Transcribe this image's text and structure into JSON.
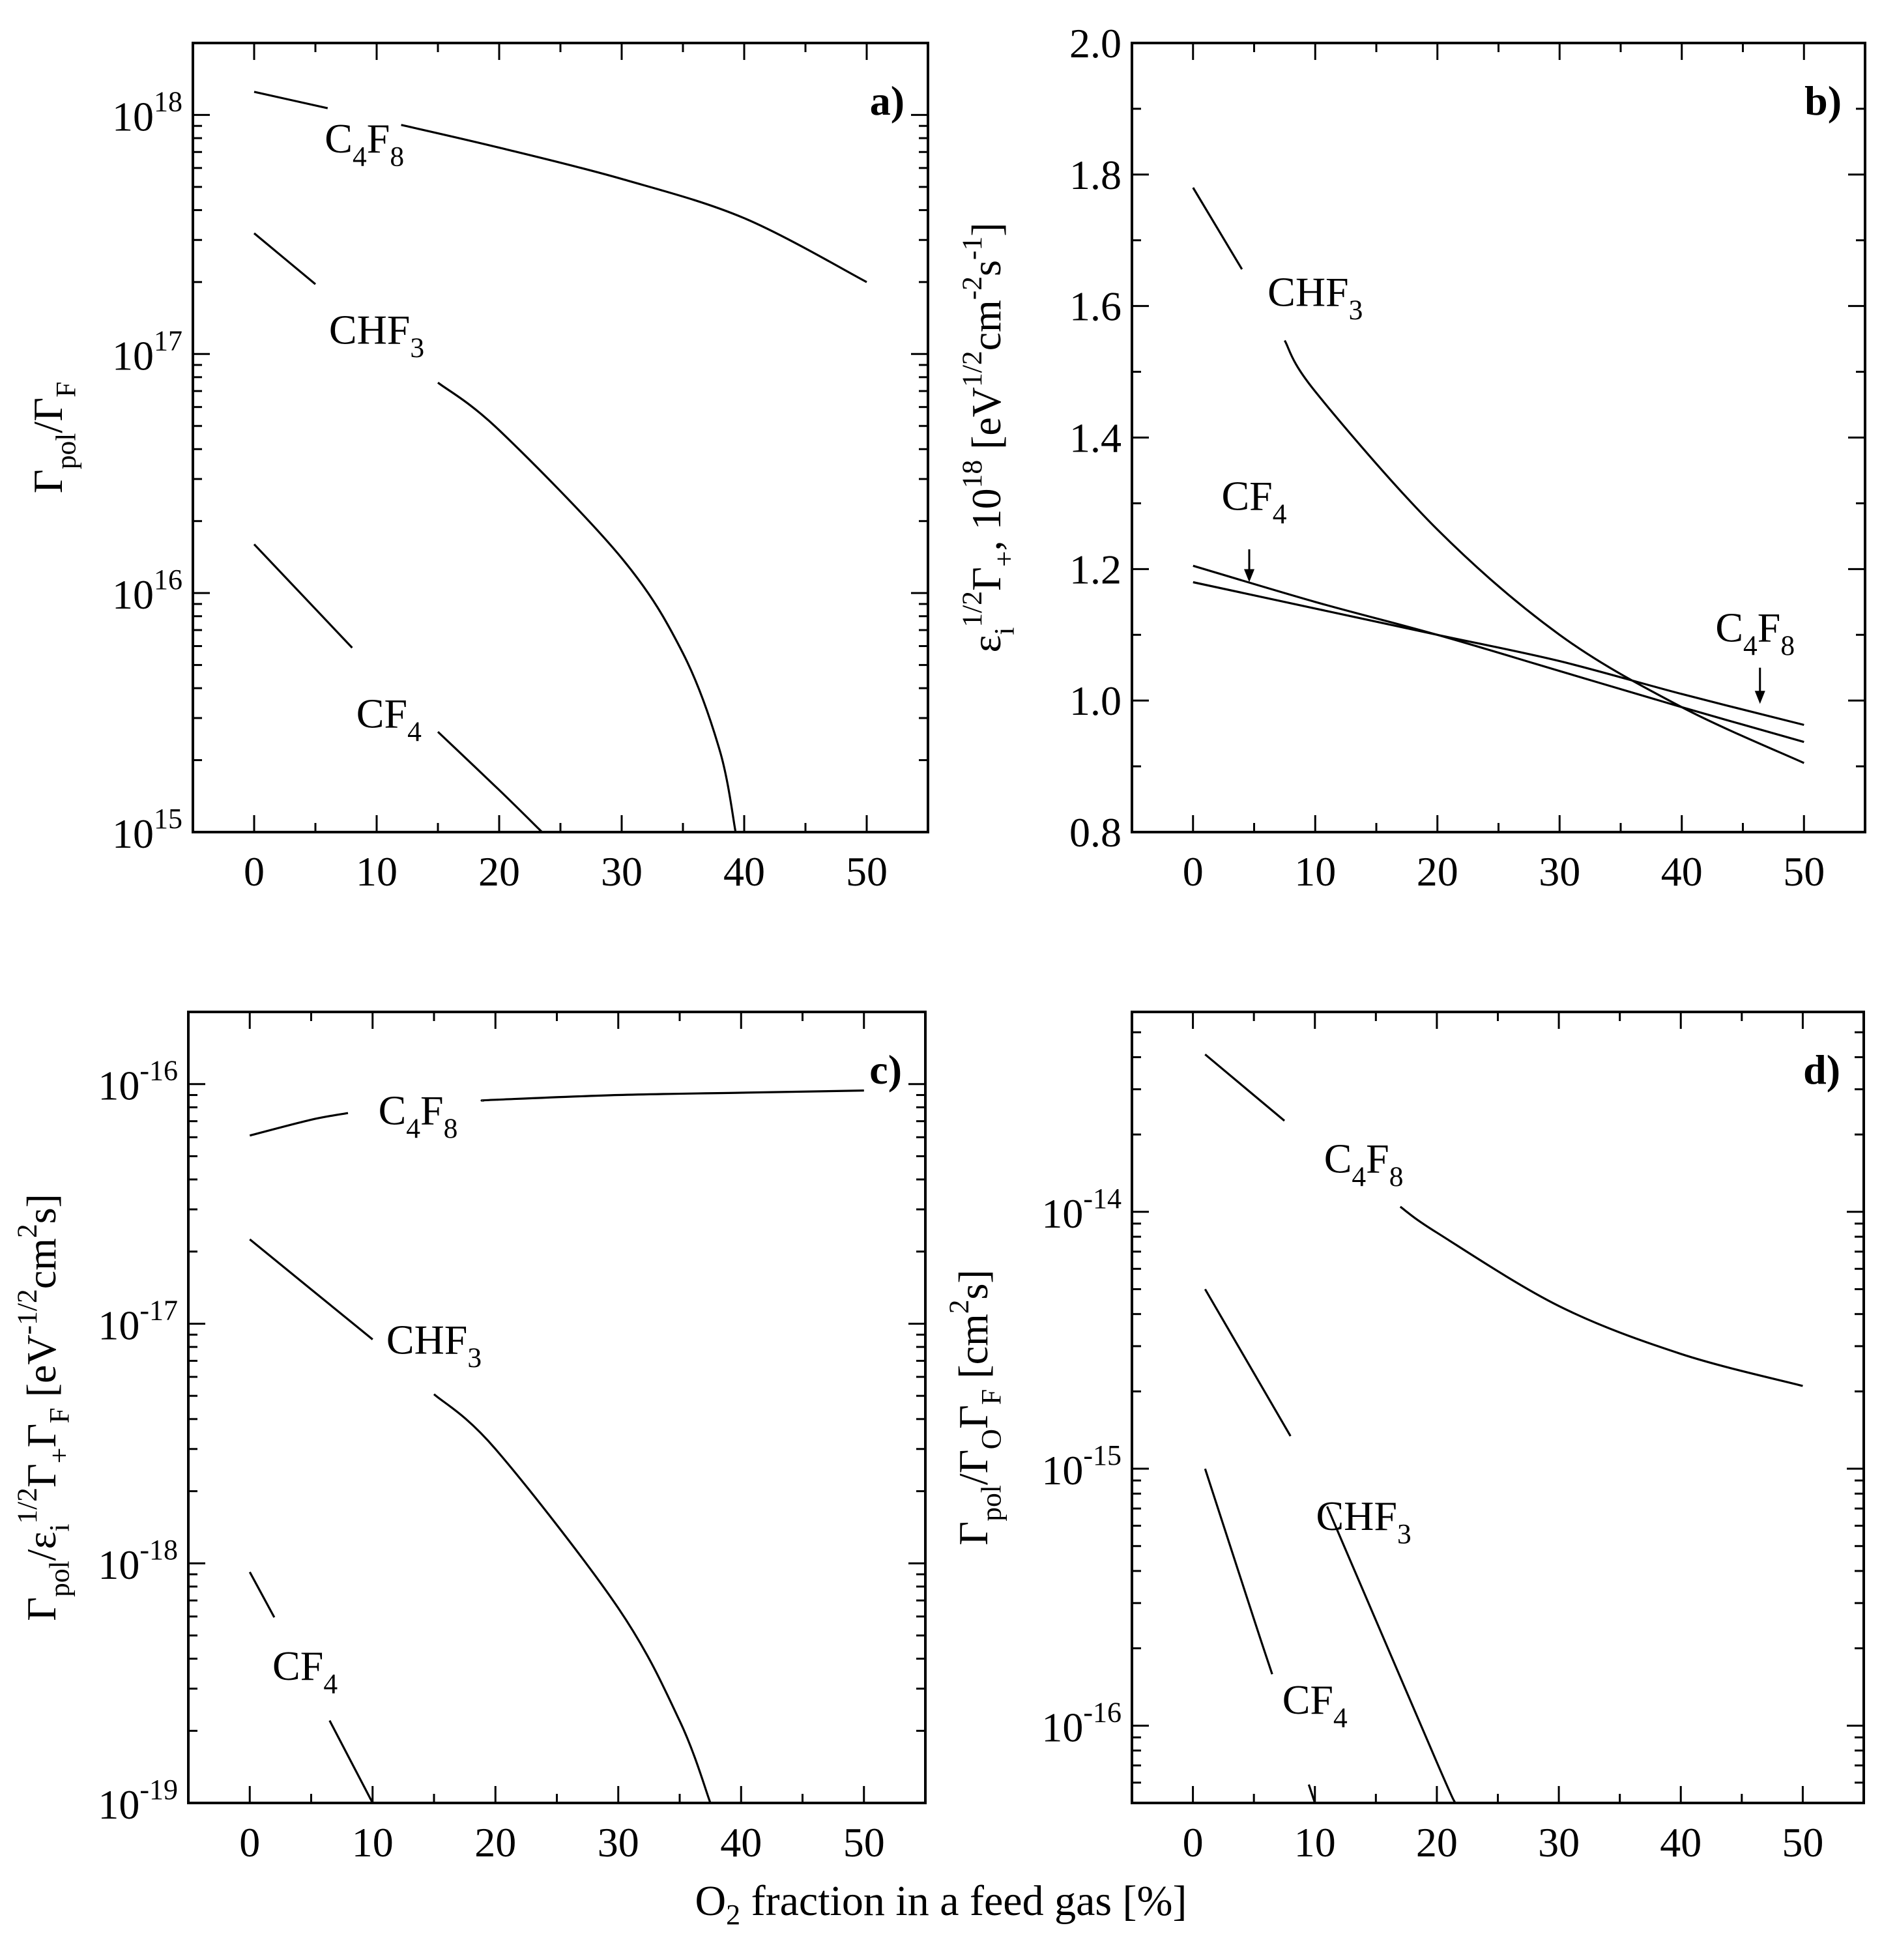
{
  "figure": {
    "shared_xlabel": {
      "pre": "O",
      "sub": "2",
      "post": " fraction in a feed gas [%]"
    }
  },
  "chart_data": [
    {
      "id": "a",
      "type": "line",
      "panel_label": "a)",
      "ylabel": [
        {
          "t": "Γ"
        },
        {
          "t": "pol",
          "s": "sub"
        },
        {
          "t": "/Γ"
        },
        {
          "t": "F",
          "s": "sub"
        }
      ],
      "xlim": [
        -5,
        55
      ],
      "yscale": "log",
      "ylim": [
        1000000000000000.0,
        2e+18
      ],
      "xticks": [
        0,
        10,
        20,
        30,
        40,
        50
      ],
      "yticks": [
        1000000000000000.0,
        1e+16,
        1e+17,
        1e+18
      ],
      "ytick_labels": [
        {
          "base": "10",
          "exp": "15"
        },
        {
          "base": "10",
          "exp": "16"
        },
        {
          "base": "10",
          "exp": "17"
        },
        {
          "base": "10",
          "exp": "18"
        }
      ],
      "series": [
        {
          "name": "C4F8",
          "label": [
            {
              "t": "C"
            },
            {
              "t": "4",
              "s": "sub"
            },
            {
              "t": "F"
            },
            {
              "t": "8",
              "s": "sub"
            }
          ],
          "x": [
            0,
            10,
            20,
            30,
            40,
            50
          ],
          "y": [
            1.25e+18,
            9.6e+17,
            7.3e+17,
            5.4e+17,
            3.7e+17,
            2e+17
          ],
          "label_at": [
            9,
            7.9e+17
          ],
          "gap": [
            6,
            12
          ]
        },
        {
          "name": "CHF3",
          "label": [
            {
              "t": "CHF"
            },
            {
              "t": "3",
              "s": "sub"
            }
          ],
          "x": [
            0,
            10,
            20,
            30,
            35,
            38,
            39.3
          ],
          "y": [
            3.2e+17,
            1.2e+17,
            4.8e+16,
            1.4e+16,
            5600000000000000.0,
            2200000000000000.0,
            1000000000000000.0
          ],
          "label_at": [
            10,
            1.25e+17
          ],
          "gap": [
            5,
            15
          ]
        },
        {
          "name": "CF4",
          "label": [
            {
              "t": "CF"
            },
            {
              "t": "4",
              "s": "sub"
            }
          ],
          "x": [
            0,
            10,
            20,
            23.5
          ],
          "y": [
            1.6e+16,
            4600000000000000.0,
            1500000000000000.0,
            1000000000000000.0
          ],
          "label_at": [
            11,
            3100000000000000.0
          ],
          "gap": [
            8,
            15
          ]
        }
      ]
    },
    {
      "id": "b",
      "type": "line",
      "panel_label": "b)",
      "ylabel": [
        {
          "t": "ε"
        },
        {
          "t": "i",
          "s": "sub"
        },
        {
          "t": "1/2",
          "s": "sup"
        },
        {
          "t": "Γ"
        },
        {
          "t": "+",
          "s": "sub"
        },
        {
          "t": ", 10"
        },
        {
          "t": "18",
          "s": "sup"
        },
        {
          "t": " [eV"
        },
        {
          "t": "1/2",
          "s": "sup"
        },
        {
          "t": "cm"
        },
        {
          "t": "-2",
          "s": "sup"
        },
        {
          "t": "s"
        },
        {
          "t": "-1",
          "s": "sup"
        },
        {
          "t": "]"
        }
      ],
      "xlim": [
        -5,
        55
      ],
      "yscale": "linear",
      "ylim": [
        0.8,
        2.0
      ],
      "xticks": [
        0,
        10,
        20,
        30,
        40,
        50
      ],
      "yticks": [
        0.8,
        1.0,
        1.2,
        1.4,
        1.6,
        1.8,
        2.0
      ],
      "ytick_labels": [
        {
          "base": "0.8"
        },
        {
          "base": "1.0"
        },
        {
          "base": "1.2"
        },
        {
          "base": "1.4"
        },
        {
          "base": "1.6"
        },
        {
          "base": "1.8"
        },
        {
          "base": "2.0"
        }
      ],
      "series": [
        {
          "name": "CHF3",
          "label": [
            {
              "t": "CHF"
            },
            {
              "t": "3",
              "s": "sub"
            }
          ],
          "x": [
            0,
            10,
            20,
            30,
            40,
            50
          ],
          "y": [
            1.78,
            1.47,
            1.26,
            1.1,
            0.99,
            0.905
          ],
          "label_at": [
            10,
            1.62
          ],
          "gap": [
            4,
            7.5
          ]
        },
        {
          "name": "CF4",
          "x": [
            0,
            10,
            20,
            30,
            40,
            50
          ],
          "y": [
            1.205,
            1.15,
            1.1,
            1.045,
            0.99,
            0.937
          ]
        },
        {
          "name": "C4F8",
          "x": [
            0,
            10,
            20,
            30,
            40,
            50
          ],
          "y": [
            1.18,
            1.14,
            1.1,
            1.06,
            1.01,
            0.963
          ]
        }
      ],
      "annotations": [
        {
          "label": [
            {
              "t": "CF"
            },
            {
              "t": "4",
              "s": "sub"
            }
          ],
          "text_at": [
            5,
            1.29
          ],
          "arrow_from": [
            4.6,
            1.23
          ],
          "arrow_to": [
            4.6,
            1.18
          ]
        },
        {
          "label": [
            {
              "t": "C"
            },
            {
              "t": "4",
              "s": "sub"
            },
            {
              "t": "F"
            },
            {
              "t": "8",
              "s": "sub"
            }
          ],
          "text_at": [
            46,
            1.09
          ],
          "arrow_from": [
            46.4,
            1.05
          ],
          "arrow_to": [
            46.4,
            0.995
          ]
        }
      ]
    },
    {
      "id": "c",
      "type": "line",
      "panel_label": "c)",
      "ylabel": [
        {
          "t": "Γ"
        },
        {
          "t": "pol",
          "s": "sub"
        },
        {
          "t": "/ε"
        },
        {
          "t": "i",
          "s": "sub"
        },
        {
          "t": "1/2",
          "s": "sup"
        },
        {
          "t": "Γ"
        },
        {
          "t": "+",
          "s": "sub"
        },
        {
          "t": "Γ"
        },
        {
          "t": "F",
          "s": "sub"
        },
        {
          "t": " [eV"
        },
        {
          "t": "-1/2",
          "s": "sup"
        },
        {
          "t": "cm"
        },
        {
          "t": "2",
          "s": "sup"
        },
        {
          "t": "s]"
        }
      ],
      "xlim": [
        -5,
        55
      ],
      "yscale": "log",
      "ylim": [
        1e-19,
        2e-16
      ],
      "xticks": [
        0,
        10,
        20,
        30,
        40,
        50
      ],
      "yticks": [
        1e-19,
        1e-18,
        1e-17,
        1e-16
      ],
      "ytick_labels": [
        {
          "base": "10",
          "exp": "-19"
        },
        {
          "base": "10",
          "exp": "-18"
        },
        {
          "base": "10",
          "exp": "-17"
        },
        {
          "base": "10",
          "exp": "-16"
        }
      ],
      "series": [
        {
          "name": "C4F8",
          "label": [
            {
              "t": "C"
            },
            {
              "t": "4",
              "s": "sub"
            },
            {
              "t": "F"
            },
            {
              "t": "8",
              "s": "sub"
            }
          ],
          "x": [
            0,
            5,
            10,
            20,
            30,
            40,
            50
          ],
          "y": [
            6.1e-17,
            7.1e-17,
            7.9e-17,
            8.6e-17,
            9e-17,
            9.2e-17,
            9.4e-17
          ],
          "label_at": [
            13.7,
            7.7e-17
          ],
          "gap": [
            8,
            19
          ]
        },
        {
          "name": "CHF3",
          "label": [
            {
              "t": "CHF"
            },
            {
              "t": "3",
              "s": "sub"
            }
          ],
          "x": [
            0,
            10,
            20,
            30,
            35,
            37.5
          ],
          "y": [
            2.25e-17,
            8.6e-18,
            3e-18,
            6.5e-19,
            2.2e-19,
            1e-19
          ],
          "label_at": [
            15,
            8.5e-18
          ],
          "gap": [
            10,
            15
          ]
        },
        {
          "name": "CF4",
          "label": [
            {
              "t": "CF"
            },
            {
              "t": "4",
              "s": "sub"
            }
          ],
          "x": [
            0,
            5,
            10
          ],
          "y": [
            9.2e-19,
            3.1e-19,
            1e-19
          ],
          "label_at": [
            4.5,
            3.7e-19
          ],
          "gap": [
            2,
            6.5
          ]
        }
      ]
    },
    {
      "id": "d",
      "type": "line",
      "panel_label": "d)",
      "ylabel": [
        {
          "t": "Γ"
        },
        {
          "t": "pol",
          "s": "sub"
        },
        {
          "t": "/Γ"
        },
        {
          "t": "O",
          "s": "sub"
        },
        {
          "t": "Γ"
        },
        {
          "t": "F",
          "s": "sub"
        },
        {
          "t": " [cm"
        },
        {
          "t": "2",
          "s": "sup"
        },
        {
          "t": "s]"
        }
      ],
      "xlim": [
        -5,
        55
      ],
      "yscale": "log",
      "ylim": [
        5e-17,
        6e-14
      ],
      "xticks": [
        0,
        10,
        20,
        30,
        40,
        50
      ],
      "yticks": [
        1e-16,
        1e-15,
        1e-14
      ],
      "ytick_labels": [
        {
          "base": "10",
          "exp": "-16"
        },
        {
          "base": "10",
          "exp": "-15"
        },
        {
          "base": "10",
          "exp": "-14"
        }
      ],
      "series": [
        {
          "name": "C4F8",
          "label": [
            {
              "t": "C"
            },
            {
              "t": "4",
              "s": "sub"
            },
            {
              "t": "F"
            },
            {
              "t": "8",
              "s": "sub"
            }
          ],
          "x": [
            1,
            10,
            20,
            30,
            40,
            50
          ],
          "y": [
            4.1e-14,
            1.8e-14,
            8.3e-15,
            4.3e-15,
            2.8e-15,
            2.1e-15
          ],
          "label_at": [
            14,
            1.6e-14
          ],
          "gap": [
            7.5,
            17
          ]
        },
        {
          "name": "CHF3",
          "label": [
            {
              "t": "CHF"
            },
            {
              "t": "3",
              "s": "sub"
            }
          ],
          "x": [
            1,
            10,
            20,
            21.5
          ],
          "y": [
            5e-15,
            9.2e-16,
            7.2e-17,
            5e-17
          ],
          "label_at": [
            14,
            6.5e-16
          ],
          "gap": [
            8,
            11
          ]
        },
        {
          "name": "CF4",
          "label": [
            {
              "t": "CF"
            },
            {
              "t": "4",
              "s": "sub"
            }
          ],
          "x": [
            1,
            5,
            10
          ],
          "y": [
            1e-15,
            2.6e-16,
            5e-17
          ],
          "label_at": [
            10,
            1.25e-16
          ],
          "gap": [
            6.5,
            9.5
          ]
        }
      ]
    }
  ]
}
